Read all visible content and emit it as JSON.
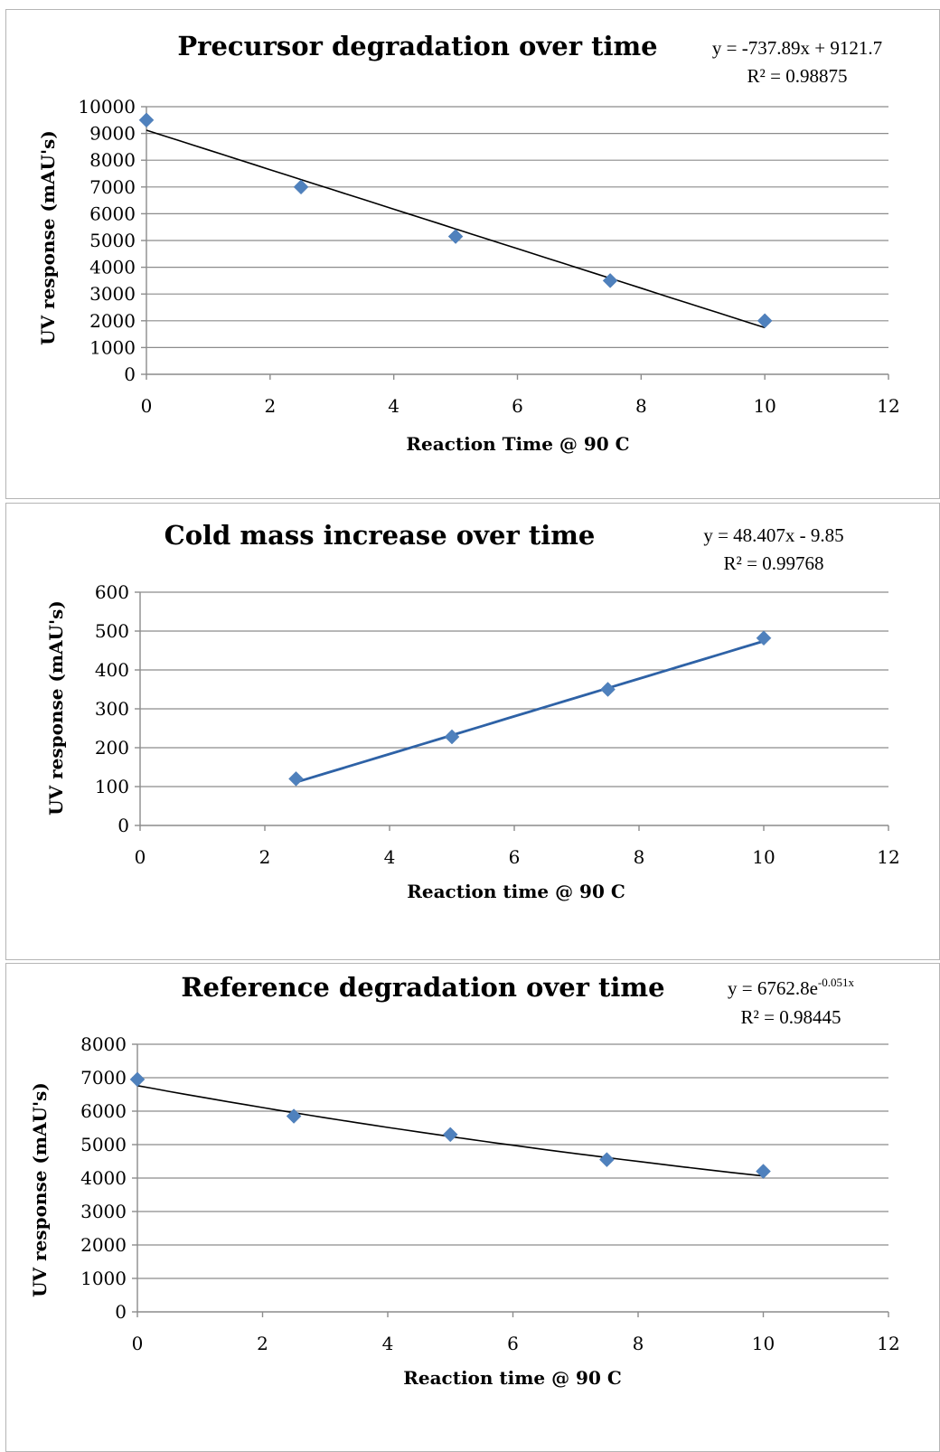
{
  "chart_data": [
    {
      "type": "scatter",
      "title": "Precursor degradation over time",
      "xlabel": "Reaction Time @ 90 C",
      "ylabel": "UV response (mAU's)",
      "xlim": [
        0,
        12
      ],
      "ylim": [
        0,
        10000
      ],
      "xticks": [
        0,
        2,
        4,
        6,
        8,
        10,
        12
      ],
      "yticks": [
        0,
        1000,
        2000,
        3000,
        4000,
        5000,
        6000,
        7000,
        8000,
        9000,
        10000
      ],
      "grid": true,
      "series": [
        {
          "x": [
            0,
            2.5,
            5,
            7.5,
            10
          ],
          "y": [
            9500,
            7000,
            5150,
            3500,
            2000
          ],
          "color": "#4f81bd"
        }
      ],
      "trendline": {
        "kind": "linear",
        "slope": -737.89,
        "intercept": 9121.7,
        "x_range": [
          0,
          10
        ],
        "color": "#000000",
        "equation": "y = -737.89x + 9121.7",
        "r2_label": "R² = 0.98875"
      }
    },
    {
      "type": "scatter",
      "title": "Cold mass increase over time",
      "xlabel": "Reaction time @ 90  C",
      "ylabel": "UV response (mAU's)",
      "xlim": [
        0,
        12
      ],
      "ylim": [
        0,
        600
      ],
      "xticks": [
        0,
        2,
        4,
        6,
        8,
        10,
        12
      ],
      "yticks": [
        0,
        100,
        200,
        300,
        400,
        500,
        600
      ],
      "grid": true,
      "series": [
        {
          "x": [
            2.5,
            5,
            7.5,
            10
          ],
          "y": [
            120,
            228,
            350,
            482
          ],
          "color": "#4f81bd"
        }
      ],
      "trendline": {
        "kind": "linear",
        "slope": 48.407,
        "intercept": -9.85,
        "x_range": [
          2.5,
          10
        ],
        "color": "#2e62a6",
        "equation": "y = 48.407x - 9.85",
        "r2_label": "R² = 0.99768"
      }
    },
    {
      "type": "scatter",
      "title": "Reference degradation over time",
      "xlabel": "Reaction time @ 90 C",
      "ylabel": "UV response (mAU's)",
      "xlim": [
        0,
        12
      ],
      "ylim": [
        0,
        8000
      ],
      "xticks": [
        0,
        2,
        4,
        6,
        8,
        10,
        12
      ],
      "yticks": [
        0,
        1000,
        2000,
        3000,
        4000,
        5000,
        6000,
        7000,
        8000
      ],
      "grid": true,
      "series": [
        {
          "x": [
            0,
            2.5,
            5,
            7.5,
            10
          ],
          "y": [
            6950,
            5850,
            5300,
            4550,
            4200
          ],
          "color": "#4f81bd"
        }
      ],
      "trendline": {
        "kind": "exponential",
        "a": 6762.8,
        "b": -0.051,
        "x_range": [
          0,
          10
        ],
        "color": "#000000",
        "equation_base": "y = 6762.8e",
        "equation_exp": "-0.051x",
        "r2_label": "R² = 0.98445"
      }
    }
  ]
}
